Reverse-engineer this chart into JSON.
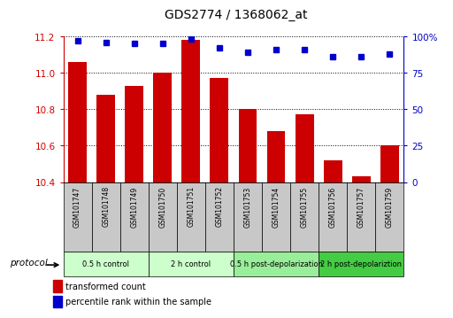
{
  "title": "GDS2774 / 1368062_at",
  "samples": [
    "GSM101747",
    "GSM101748",
    "GSM101749",
    "GSM101750",
    "GSM101751",
    "GSM101752",
    "GSM101753",
    "GSM101754",
    "GSM101755",
    "GSM101756",
    "GSM101757",
    "GSM101759"
  ],
  "bar_values": [
    11.06,
    10.88,
    10.93,
    11.0,
    11.18,
    10.97,
    10.8,
    10.68,
    10.77,
    10.52,
    10.43,
    10.6
  ],
  "dot_values": [
    97,
    96,
    95,
    95,
    98,
    92,
    89,
    91,
    91,
    86,
    86,
    88
  ],
  "ylim_left": [
    10.4,
    11.2
  ],
  "ylim_right": [
    0,
    100
  ],
  "yticks_left": [
    10.4,
    10.6,
    10.8,
    11.0,
    11.2
  ],
  "yticks_right": [
    0,
    25,
    50,
    75,
    100
  ],
  "bar_color": "#cc0000",
  "dot_color": "#0000cc",
  "bar_width": 0.65,
  "groups": [
    {
      "label": "0.5 h control",
      "start": 0,
      "end": 3
    },
    {
      "label": "2 h control",
      "start": 3,
      "end": 6
    },
    {
      "label": "0.5 h post-depolarization",
      "start": 6,
      "end": 9
    },
    {
      "label": "2 h post-depolariztion",
      "start": 9,
      "end": 12
    }
  ],
  "group_colors": [
    "#ccffcc",
    "#ccffcc",
    "#99ee99",
    "#44cc44"
  ],
  "sample_box_color": "#c8c8c8",
  "protocol_label": "protocol",
  "legend_bar_label": "transformed count",
  "legend_dot_label": "percentile rank within the sample",
  "tick_color_left": "#cc0000",
  "tick_color_right": "#0000cc"
}
